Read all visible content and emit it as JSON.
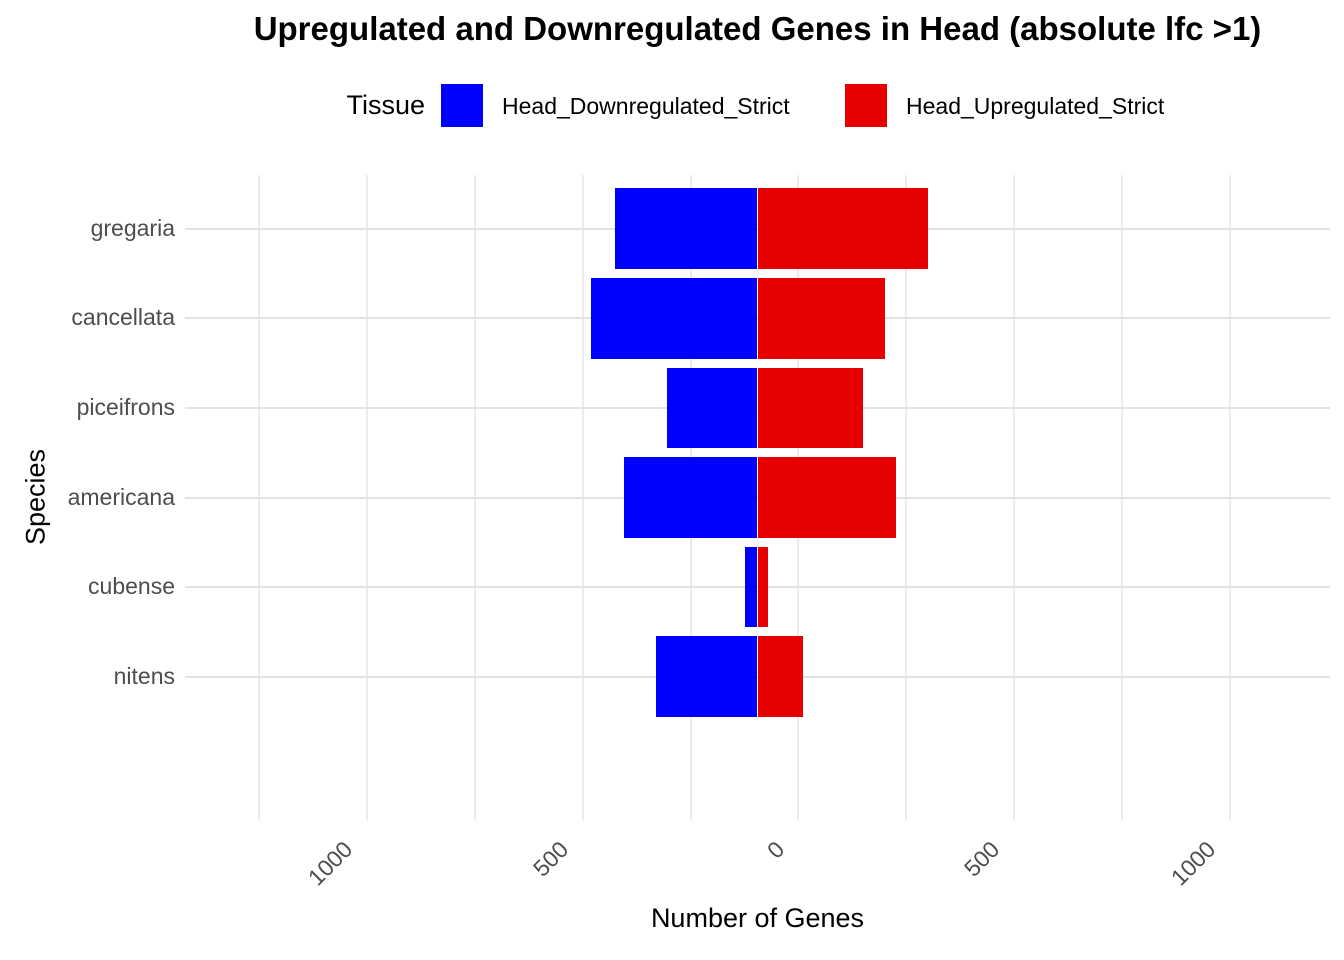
{
  "title": "Upregulated and Downregulated Genes in Head (absolute lfc >1)",
  "legend": {
    "title": "Tissue",
    "items": [
      {
        "label": "Head_Downregulated_Strict",
        "color": "#0000FF"
      },
      {
        "label": "Head_Upregulated_Strict",
        "color": "#E60000"
      }
    ],
    "position": "top"
  },
  "axes": {
    "x_title": "Number of Genes",
    "y_title": "Species"
  },
  "colors": {
    "downregulated": "#0000FF",
    "upregulated": "#E60000",
    "grid_major": "#E2E2E2",
    "grid_minor": "#ECECEC",
    "axis_text": "#4D4D4D",
    "background": "#FFFFFF"
  },
  "chart_data": {
    "type": "bar",
    "orientation": "horizontal-diverging",
    "title": "Upregulated and Downregulated Genes in Head (absolute lfc >1)",
    "xlabel": "Number of Genes",
    "ylabel": "Species",
    "categories": [
      "gregaria",
      "cancellata",
      "piceifrons",
      "americana",
      "cubense",
      "nitens"
    ],
    "series": [
      {
        "name": "Head_Downregulated_Strict",
        "color": "#0000FF",
        "values": [
          -330,
          -385,
          -210,
          -310,
          -30,
          -235
        ]
      },
      {
        "name": "Head_Upregulated_Strict",
        "color": "#E60000",
        "values": [
          395,
          295,
          245,
          320,
          25,
          105
        ]
      }
    ],
    "xlim": [
      -1327.5,
      1327.5
    ],
    "x_major_ticks": [
      -1000,
      -500,
      0,
      500,
      1000
    ],
    "x_tick_labels": [
      "1000",
      "500",
      "0",
      "500",
      "1000"
    ],
    "x_minor_step": 250,
    "grid": true,
    "legend_position": "top",
    "bar_width_fraction": 0.9
  }
}
